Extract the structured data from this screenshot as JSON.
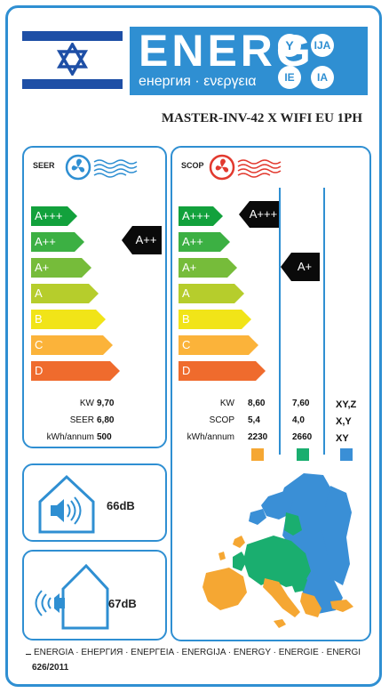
{
  "header": {
    "brand_word": "ENERG",
    "brand_subtitle": "енергия · ενεργεια",
    "lang_codes": [
      "Y",
      "IJA",
      "IE",
      "IA"
    ],
    "model": "MASTER-INV-42 X WIFI EU 1PH"
  },
  "scale_classes": [
    "A+++",
    "A++",
    "A+",
    "A",
    "B",
    "C",
    "D"
  ],
  "scale_colors": [
    "#12a13c",
    "#3cb043",
    "#76bc3a",
    "#b6cd2c",
    "#f1e418",
    "#fbb33a",
    "#ef6b2d"
  ],
  "seer": {
    "title": "SEER",
    "rating": "A++",
    "rows": [
      {
        "label": "KW",
        "value": "9,70"
      },
      {
        "label": "SEER",
        "value": "6,80"
      },
      {
        "label": "kWh/annum",
        "value": "500"
      }
    ]
  },
  "scop": {
    "title": "SCOP",
    "ratings": [
      "A+++",
      "A+"
    ],
    "rows": [
      {
        "label": "KW",
        "values": [
          "8,60",
          "7,60",
          "XY,Z"
        ]
      },
      {
        "label": "SCOP",
        "values": [
          "5,4",
          "4,0",
          "X,Y"
        ]
      },
      {
        "label": "kWh/annum",
        "values": [
          "2230",
          "2660",
          "XY"
        ]
      }
    ],
    "zone_colors": [
      "#f5a733",
      "#1aae6f",
      "#3a8fd6"
    ]
  },
  "noise": {
    "indoor": "66dB",
    "outdoor": "67dB"
  },
  "footer": {
    "languages": "ENERGIA · ЕНЕРГИЯ · ΕΝΕΡΓΕΙΑ · ENERGIJA · ENERGY · ENERGIE · ENERGI",
    "regulation": "626/2011"
  }
}
